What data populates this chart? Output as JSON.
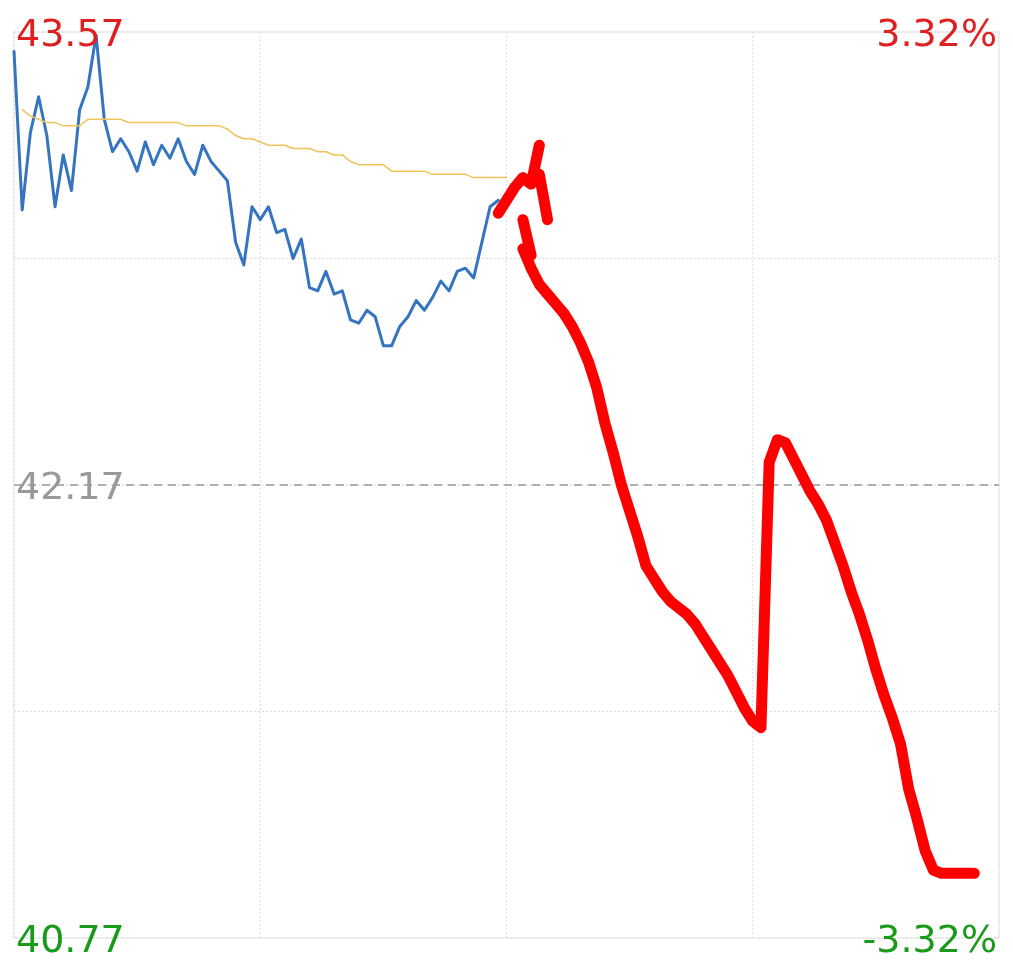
{
  "chart_data": {
    "type": "line",
    "categories": [
      null,
      null,
      null,
      null,
      null,
      null,
      null,
      null,
      null,
      null,
      null,
      null,
      null,
      null,
      null,
      null,
      null,
      null,
      null,
      null,
      null,
      null,
      null,
      null,
      null,
      null,
      null,
      null,
      null,
      null,
      null,
      null,
      null,
      null,
      null,
      null,
      null,
      null,
      null,
      null,
      null,
      null,
      null,
      null,
      null,
      null,
      null,
      null,
      null,
      null,
      null,
      null,
      null,
      null,
      null,
      null,
      null,
      null,
      null,
      null,
      null,
      null,
      null,
      null,
      null,
      null,
      null,
      null,
      null,
      null,
      null,
      null,
      null,
      null,
      null,
      null,
      null,
      null,
      null,
      null,
      null,
      null,
      null,
      null,
      null,
      null,
      null,
      null,
      null,
      null,
      null,
      null,
      null,
      null,
      null,
      null,
      null,
      null,
      null,
      null,
      null,
      null,
      null,
      null,
      null,
      null,
      null,
      null,
      null,
      null,
      null,
      null,
      null,
      null,
      null,
      null,
      null,
      null,
      null,
      null,
      null
    ],
    "ylim": [
      40.77,
      43.57
    ],
    "yticks": [
      40.77,
      {
        "value": 41.47,
        "label": null
      },
      42.17,
      {
        "value": 42.87,
        "label": null
      },
      43.57
    ],
    "y2lim": [
      -3.32,
      3.32
    ],
    "y2ticks": [
      {
        "value": -3.32,
        "label": "-3.32%"
      },
      {
        "value": 3.32,
        "label": "3.32%"
      }
    ],
    "grid": true,
    "ref_lines": [
      {
        "axis": "y",
        "value": 42.17,
        "color": "#999999",
        "line_style": "dashed"
      }
    ],
    "series": [
      {
        "color": "#3575c0",
        "values": [
          43.51,
          43.02,
          43.26,
          43.37,
          43.25,
          43.03,
          43.19,
          43.08,
          43.33,
          43.4,
          43.56,
          43.3,
          43.2,
          43.24,
          43.2,
          43.14,
          43.23,
          43.16,
          43.22,
          43.18,
          43.24,
          43.17,
          43.13,
          43.22,
          43.17,
          43.14,
          43.11,
          42.92,
          42.85,
          43.03,
          42.99,
          43.03,
          42.95,
          42.96,
          42.87,
          42.93,
          42.78,
          42.77,
          42.83,
          42.76,
          42.77,
          42.68,
          42.67,
          42.71,
          42.69,
          42.6,
          42.6,
          42.66,
          42.69,
          42.74,
          42.71,
          42.75,
          42.8,
          42.77,
          42.83,
          42.84,
          42.81,
          42.92,
          43.03,
          43.05,
          null,
          null,
          null,
          null,
          null,
          null,
          null,
          null,
          null,
          null,
          null,
          null,
          null,
          null,
          null,
          null,
          null,
          null,
          null,
          null,
          null,
          null,
          null,
          null,
          null,
          null,
          null,
          null,
          null,
          null,
          null,
          null,
          null,
          null,
          null,
          null,
          null,
          null,
          null,
          null,
          null,
          null,
          null,
          null,
          null,
          null,
          null,
          null,
          null,
          null,
          null,
          null,
          null,
          null,
          null,
          null,
          null,
          null,
          null,
          null,
          null
        ]
      },
      {
        "color": "#f0c35a",
        "values": [
          null,
          43.33,
          43.31,
          43.3,
          43.29,
          43.29,
          43.28,
          43.28,
          43.28,
          43.3,
          43.3,
          43.3,
          43.3,
          43.3,
          43.29,
          43.29,
          43.29,
          43.29,
          43.29,
          43.29,
          43.29,
          43.28,
          43.28,
          43.28,
          43.28,
          43.28,
          43.27,
          43.25,
          43.24,
          43.24,
          43.23,
          43.22,
          43.22,
          43.22,
          43.21,
          43.21,
          43.21,
          43.2,
          43.2,
          43.19,
          43.19,
          43.17,
          43.16,
          43.16,
          43.16,
          43.16,
          43.14,
          43.14,
          43.14,
          43.14,
          43.14,
          43.13,
          43.13,
          43.13,
          43.13,
          43.13,
          43.12,
          43.12,
          43.12,
          43.12,
          43.12,
          null,
          null,
          null,
          null,
          null,
          null,
          null,
          null,
          null,
          null,
          null,
          null,
          null,
          null,
          null,
          null,
          null,
          null,
          null,
          null,
          null,
          null,
          null,
          null,
          null,
          null,
          null,
          null,
          null,
          null,
          null,
          null,
          null,
          null,
          null,
          null,
          null,
          null,
          null,
          null,
          null,
          null,
          null,
          null,
          null,
          null,
          null,
          null,
          null,
          null,
          null,
          null,
          null,
          null,
          null,
          null,
          null,
          null,
          null,
          null
        ]
      },
      {
        "color": "#ff0000",
        "values": [
          null,
          null,
          null,
          null,
          null,
          null,
          null,
          null,
          null,
          null,
          null,
          null,
          null,
          null,
          null,
          null,
          null,
          null,
          null,
          null,
          null,
          null,
          null,
          null,
          null,
          null,
          null,
          null,
          null,
          null,
          null,
          null,
          null,
          null,
          null,
          null,
          null,
          null,
          null,
          null,
          null,
          null,
          null,
          null,
          null,
          null,
          null,
          null,
          null,
          null,
          null,
          null,
          null,
          null,
          null,
          null,
          null,
          null,
          null,
          43.01,
          43.05,
          43.09,
          43.12,
          43.1,
          43.22,
          null,
          null,
          null,
          null,
          null,
          null,
          null,
          null,
          null,
          null,
          null,
          null,
          null,
          null,
          null,
          null,
          null,
          null,
          null,
          null,
          null,
          null,
          null,
          null,
          null,
          null,
          null,
          null,
          null,
          null,
          null,
          null,
          null,
          null,
          null,
          null,
          null,
          null,
          null,
          null,
          null,
          null,
          null,
          null,
          null,
          null,
          null,
          null,
          null,
          null,
          null,
          null,
          null,
          null,
          null,
          null
        ]
      },
      {
        "color": "#ff0000",
        "values": [
          null,
          null,
          null,
          null,
          null,
          null,
          null,
          null,
          null,
          null,
          null,
          null,
          null,
          null,
          null,
          null,
          null,
          null,
          null,
          null,
          null,
          null,
          null,
          null,
          null,
          null,
          null,
          null,
          null,
          null,
          null,
          null,
          null,
          null,
          null,
          null,
          null,
          null,
          null,
          null,
          null,
          null,
          null,
          null,
          null,
          null,
          null,
          null,
          null,
          null,
          null,
          null,
          null,
          null,
          null,
          null,
          null,
          null,
          null,
          null,
          null,
          null,
          null,
          null,
          43.13,
          42.99,
          null,
          null,
          null,
          null,
          null,
          null,
          null,
          null,
          null,
          null,
          null,
          null,
          null,
          null,
          null,
          null,
          null,
          null,
          null,
          null,
          null,
          null,
          null,
          null,
          null,
          null,
          null,
          null,
          null,
          null,
          null,
          null,
          null,
          null,
          null,
          null,
          null,
          null,
          null,
          null,
          null,
          null,
          null,
          null,
          null,
          null,
          null,
          null,
          null,
          null,
          null,
          null,
          null,
          null,
          null
        ]
      },
      {
        "color": "#ff0000",
        "values": [
          null,
          null,
          null,
          null,
          null,
          null,
          null,
          null,
          null,
          null,
          null,
          null,
          null,
          null,
          null,
          null,
          null,
          null,
          null,
          null,
          null,
          null,
          null,
          null,
          null,
          null,
          null,
          null,
          null,
          null,
          null,
          null,
          null,
          null,
          null,
          null,
          null,
          null,
          null,
          null,
          null,
          null,
          null,
          null,
          null,
          null,
          null,
          null,
          null,
          null,
          null,
          null,
          null,
          null,
          null,
          null,
          null,
          null,
          null,
          null,
          null,
          null,
          42.99,
          42.88,
          null,
          null,
          null,
          null,
          null,
          null,
          null,
          null,
          null,
          null,
          null,
          null,
          null,
          null,
          null,
          null,
          null,
          null,
          null,
          null,
          null,
          null,
          null,
          null,
          null,
          null,
          null,
          null,
          null,
          null,
          null,
          null,
          null,
          null,
          null,
          null,
          null,
          null,
          null,
          null,
          null,
          null,
          null,
          null,
          null,
          null,
          null,
          null,
          null,
          null,
          null,
          null,
          null,
          null,
          null,
          null,
          null
        ]
      },
      {
        "color": "#ff0000",
        "values": [
          null,
          null,
          null,
          null,
          null,
          null,
          null,
          null,
          null,
          null,
          null,
          null,
          null,
          null,
          null,
          null,
          null,
          null,
          null,
          null,
          null,
          null,
          null,
          null,
          null,
          null,
          null,
          null,
          null,
          null,
          null,
          null,
          null,
          null,
          null,
          null,
          null,
          null,
          null,
          null,
          null,
          null,
          null,
          null,
          null,
          null,
          null,
          null,
          null,
          null,
          null,
          null,
          null,
          null,
          null,
          null,
          null,
          null,
          null,
          null,
          null,
          null,
          42.9,
          42.84,
          42.79,
          42.76,
          42.73,
          42.7,
          42.66,
          42.61,
          42.55,
          42.47,
          42.36,
          42.27,
          42.17,
          42.09,
          42.01,
          41.92,
          41.88,
          41.84,
          41.81,
          41.79,
          41.77,
          41.74,
          41.7,
          41.66,
          41.62,
          41.58,
          41.53,
          41.48,
          41.44,
          41.42,
          42.24,
          42.31,
          42.3,
          42.25,
          42.2,
          42.15,
          42.11,
          42.06,
          41.99,
          41.92,
          41.84,
          41.77,
          41.69,
          41.6,
          41.52,
          41.45,
          41.37,
          41.23,
          41.14,
          41.04,
          40.98,
          40.97,
          40.97,
          40.97,
          40.97,
          40.97,
          null,
          null,
          null
        ]
      }
    ]
  }
}
